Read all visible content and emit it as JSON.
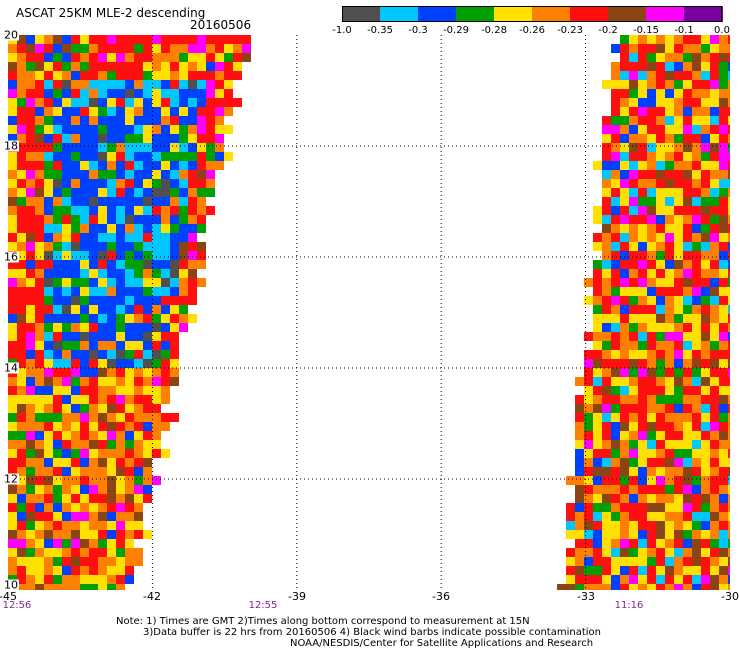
{
  "header": {
    "title": "ASCAT 25KM MLE-2 descending",
    "date": "20160506"
  },
  "colorbar": {
    "colors": [
      "#505050",
      "#00c8ff",
      "#0040ff",
      "#00a000",
      "#ffe000",
      "#ff8000",
      "#ff1010",
      "#8b4513",
      "#ff00ff",
      "#7a00a0"
    ],
    "labels": [
      "-1.0",
      "-0.35",
      "-0.3",
      "-0.29",
      "-0.28",
      "-0.26",
      "-0.23",
      "-0.2",
      "-0.15",
      "-0.1",
      "0.0"
    ]
  },
  "axes": {
    "lon_labels": [
      "-45",
      "-42",
      "-39",
      "-36",
      "-33",
      "-30"
    ],
    "lat_labels": [
      "20",
      "18",
      "16",
      "14",
      "12",
      "10"
    ]
  },
  "times": [
    "12:56",
    "12:55",
    "11:16"
  ],
  "notes": {
    "line1": "Note: 1) Times are GMT 2)Times along bottom correspond to measurement at 15N",
    "line2": "3)Data buffer is 22 hrs from 20160506 4) Black wind barbs indicate possible contamination",
    "line3": "NOAA/NESDIS/Center for Satellite Applications and Research"
  },
  "map": {
    "lon_range": [
      -45,
      -30
    ],
    "lat_range": [
      10,
      20
    ],
    "grid_step_lon": 3,
    "grid_step_lat": 2,
    "swath_left": {
      "west_lon": -45,
      "east_lon_at_top": -40.1,
      "east_lon_at_bottom": -42.5
    },
    "swath_right": {
      "west_lon_at_top": -32.5,
      "west_lon_at_bottom": -33.6,
      "east_lon": -30
    },
    "dominant_colors": [
      "#ff1010",
      "#ff8000",
      "#ffe000",
      "#0040ff",
      "#00c8ff",
      "#00a000",
      "#8b4513",
      "#ff00ff",
      "#505050"
    ]
  }
}
